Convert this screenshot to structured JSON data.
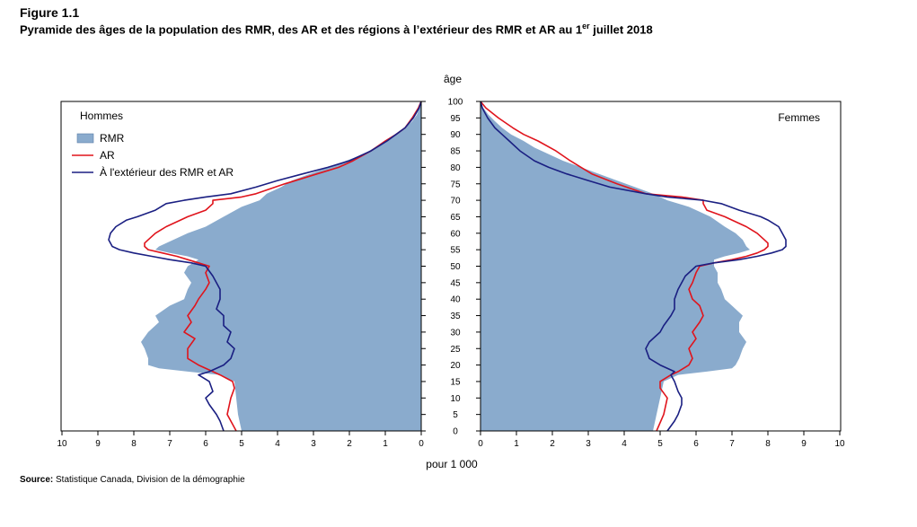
{
  "figure": {
    "label": "Figure 1.1",
    "title_main": "Pyramide des âges de la population des RMR, des AR et des régions à l’extérieur des RMR et AR au 1",
    "title_sup": "er",
    "title_end": " juillet 2018",
    "source_label": "Source:",
    "source_text": " Statistique Canada, Division de la démographie"
  },
  "colors": {
    "rmr_fill": "#8aabcd",
    "ar_line": "#e0141c",
    "outside_line": "#1a1f82"
  },
  "chart_data": {
    "type": "area",
    "age_axis_label": "âge",
    "x_axis_label": "pour 1 000",
    "age_ticks": [
      0,
      5,
      10,
      15,
      20,
      25,
      30,
      35,
      40,
      45,
      50,
      55,
      60,
      65,
      70,
      75,
      80,
      85,
      90,
      95,
      100
    ],
    "x_ticks": [
      0,
      1,
      2,
      3,
      4,
      5,
      6,
      7,
      8,
      9,
      10
    ],
    "xlim": [
      0,
      10
    ],
    "ylim": [
      0,
      100
    ],
    "legend": {
      "placement": "top-left"
    },
    "legend_items": {
      "rmr": "RMR",
      "ar": "AR",
      "outside": "À l'extérieur des RMR et AR"
    },
    "panels": [
      {
        "name": "Hommes",
        "side": "left",
        "series": {
          "rmr": {
            "ages": [
              0,
              5,
              10,
              15,
              17,
              18,
              19,
              20,
              22,
              25,
              27,
              30,
              33,
              35,
              38,
              40,
              43,
              45,
              48,
              50,
              52,
              53,
              54,
              55,
              56,
              58,
              60,
              62,
              65,
              68,
              70,
              72,
              74,
              76,
              78,
              80,
              82,
              84,
              86,
              88,
              90,
              92,
              94,
              96,
              98,
              100
            ],
            "values": [
              5.0,
              5.1,
              5.15,
              5.2,
              5.6,
              6.5,
              7.3,
              7.6,
              7.6,
              7.7,
              7.8,
              7.6,
              7.3,
              7.4,
              7.0,
              6.6,
              6.5,
              6.4,
              6.6,
              6.5,
              6.2,
              6.5,
              7.0,
              7.4,
              7.3,
              6.9,
              6.5,
              6.0,
              5.5,
              5.0,
              4.5,
              4.3,
              3.9,
              3.6,
              3.1,
              2.6,
              2.1,
              1.6,
              1.3,
              1.0,
              0.7,
              0.45,
              0.25,
              0.12,
              0.05,
              0.0
            ]
          },
          "ar": {
            "ages": [
              0,
              5,
              10,
              13,
              15,
              17,
              18,
              20,
              22,
              25,
              28,
              30,
              33,
              35,
              38,
              40,
              43,
              45,
              48,
              50,
              51,
              52,
              53,
              54,
              55,
              56,
              57,
              58,
              60,
              62,
              64,
              65,
              67,
              69,
              70,
              71,
              72,
              75,
              78,
              80,
              82,
              85,
              88,
              90,
              92,
              95,
              98,
              100
            ],
            "values": [
              5.15,
              5.4,
              5.3,
              5.2,
              5.25,
              5.6,
              5.8,
              6.2,
              6.5,
              6.5,
              6.3,
              6.6,
              6.4,
              6.5,
              6.3,
              6.2,
              6.0,
              5.9,
              6.0,
              5.9,
              6.2,
              6.5,
              6.8,
              7.2,
              7.6,
              7.7,
              7.7,
              7.6,
              7.4,
              7.1,
              6.7,
              6.5,
              6.0,
              5.8,
              5.8,
              5.0,
              4.6,
              3.8,
              2.9,
              2.3,
              1.9,
              1.4,
              1.0,
              0.7,
              0.45,
              0.25,
              0.08,
              0.0
            ]
          },
          "outside": {
            "ages": [
              0,
              3,
              5,
              8,
              10,
              12,
              15,
              17,
              18,
              20,
              22,
              25,
              27,
              30,
              32,
              35,
              37,
              40,
              43,
              45,
              47,
              50,
              51,
              52,
              53,
              54,
              55,
              56,
              58,
              60,
              62,
              64,
              65,
              67,
              69,
              70,
              71,
              72,
              74,
              76,
              78,
              80,
              82,
              85,
              88,
              90,
              92,
              95,
              98,
              100
            ],
            "values": [
              5.5,
              5.6,
              5.7,
              5.9,
              6.0,
              5.8,
              5.9,
              6.2,
              5.9,
              5.5,
              5.3,
              5.2,
              5.4,
              5.3,
              5.5,
              5.5,
              5.7,
              5.6,
              5.6,
              5.7,
              5.8,
              6.0,
              6.4,
              7.0,
              7.5,
              8.0,
              8.4,
              8.6,
              8.7,
              8.65,
              8.5,
              8.2,
              7.9,
              7.4,
              7.1,
              6.6,
              6.0,
              5.3,
              4.6,
              4.0,
              3.3,
              2.6,
              2.0,
              1.4,
              0.95,
              0.7,
              0.45,
              0.22,
              0.06,
              0.0
            ]
          }
        }
      },
      {
        "name": "Femmes",
        "side": "right",
        "series": {
          "rmr": {
            "ages": [
              0,
              5,
              10,
              15,
              17,
              18,
              19,
              20,
              22,
              25,
              27,
              30,
              33,
              35,
              38,
              40,
              43,
              45,
              48,
              50,
              52,
              53,
              54,
              55,
              56,
              58,
              60,
              62,
              65,
              68,
              70,
              72,
              74,
              76,
              78,
              80,
              82,
              84,
              86,
              88,
              90,
              92,
              94,
              96,
              98,
              100
            ],
            "values": [
              4.8,
              4.9,
              5.0,
              5.1,
              5.5,
              6.3,
              7.0,
              7.1,
              7.2,
              7.3,
              7.4,
              7.2,
              7.2,
              7.3,
              7.0,
              6.8,
              6.7,
              6.6,
              6.6,
              6.5,
              6.5,
              6.8,
              7.2,
              7.5,
              7.4,
              7.3,
              7.1,
              6.8,
              6.4,
              5.8,
              5.2,
              4.8,
              4.3,
              3.8,
              3.3,
              2.8,
              2.3,
              1.9,
              1.5,
              1.2,
              0.85,
              0.6,
              0.4,
              0.22,
              0.08,
              0.0
            ]
          },
          "ar": {
            "ages": [
              0,
              5,
              10,
              13,
              15,
              17,
              18,
              20,
              22,
              25,
              28,
              30,
              33,
              35,
              38,
              40,
              43,
              45,
              48,
              50,
              51,
              52,
              53,
              54,
              55,
              56,
              57,
              58,
              60,
              62,
              64,
              65,
              67,
              69,
              70,
              71,
              72,
              75,
              78,
              80,
              82,
              85,
              88,
              90,
              92,
              95,
              98,
              100
            ],
            "values": [
              4.9,
              5.1,
              5.2,
              5.0,
              5.0,
              5.3,
              5.5,
              5.8,
              5.9,
              5.8,
              6.0,
              5.9,
              6.1,
              6.2,
              6.1,
              5.9,
              5.8,
              5.9,
              6.0,
              6.1,
              6.5,
              7.0,
              7.4,
              7.7,
              7.9,
              8.0,
              8.0,
              7.9,
              7.7,
              7.4,
              7.0,
              6.8,
              6.3,
              6.2,
              6.2,
              5.6,
              4.6,
              3.8,
              3.1,
              2.8,
              2.5,
              2.1,
              1.6,
              1.2,
              0.9,
              0.5,
              0.15,
              0.0
            ]
          },
          "outside": {
            "ages": [
              0,
              3,
              5,
              8,
              10,
              12,
              15,
              17,
              18,
              20,
              22,
              25,
              27,
              30,
              32,
              35,
              37,
              40,
              43,
              45,
              47,
              50,
              51,
              52,
              53,
              54,
              55,
              56,
              58,
              60,
              62,
              64,
              65,
              67,
              69,
              70,
              71,
              72,
              74,
              76,
              78,
              80,
              82,
              85,
              88,
              90,
              92,
              95,
              98,
              100
            ],
            "values": [
              5.2,
              5.4,
              5.5,
              5.6,
              5.6,
              5.5,
              5.4,
              5.3,
              5.4,
              5.0,
              4.7,
              4.6,
              4.7,
              5.0,
              5.1,
              5.3,
              5.4,
              5.4,
              5.5,
              5.6,
              5.7,
              6.0,
              6.5,
              7.2,
              7.7,
              8.1,
              8.4,
              8.5,
              8.5,
              8.4,
              8.3,
              8.0,
              7.8,
              7.2,
              6.7,
              6.2,
              5.2,
              4.6,
              3.6,
              3.0,
              2.4,
              1.9,
              1.5,
              1.1,
              0.8,
              0.6,
              0.4,
              0.2,
              0.05,
              0.0
            ]
          }
        }
      }
    ]
  }
}
